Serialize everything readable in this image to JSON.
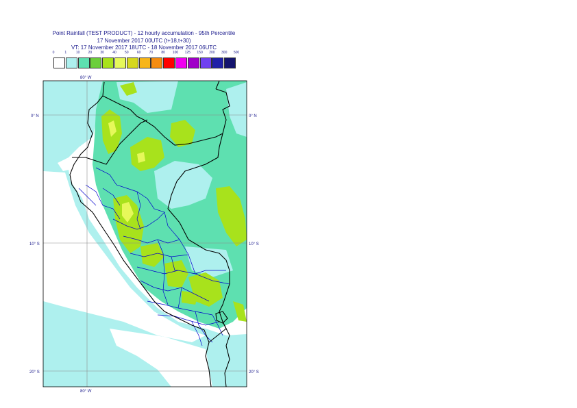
{
  "title": {
    "line1": "Point Rainfall (TEST PRODUCT) - 12 hourly accumulation - 95th Percentile",
    "line2": "17 November 2017 00UTC (t+18,t+30)",
    "line3": "VT: 17 November 2017 18UTC - 18 November 2017 06UTC"
  },
  "legend": {
    "thresholds": [
      "0",
      "1",
      "10",
      "20",
      "30",
      "40",
      "50",
      "60",
      "70",
      "80",
      "100",
      "125",
      "150",
      "200",
      "300",
      "500"
    ],
    "colors": [
      "#ffffff",
      "#aef0ee",
      "#5ee0b0",
      "#6ccf3a",
      "#a8e21c",
      "#e6f85a",
      "#d6d81e",
      "#f7b51a",
      "#f48c10",
      "#ff0000",
      "#f000f0",
      "#a000c8",
      "#7040f0",
      "#2020a8",
      "#14146e"
    ]
  },
  "map": {
    "lon_labels": {
      "top": "80° W",
      "bottom": "80° W"
    },
    "lat_labels": [
      "0° N",
      "10° S",
      "20° S"
    ],
    "colors": {
      "ocean_light": "#aef0ee",
      "land_medium": "#5ee0b0",
      "heavy": "#a8e21c",
      "very_heavy": "#e6f85a",
      "country_border": "#000000",
      "region_border": "#0000cc"
    }
  }
}
